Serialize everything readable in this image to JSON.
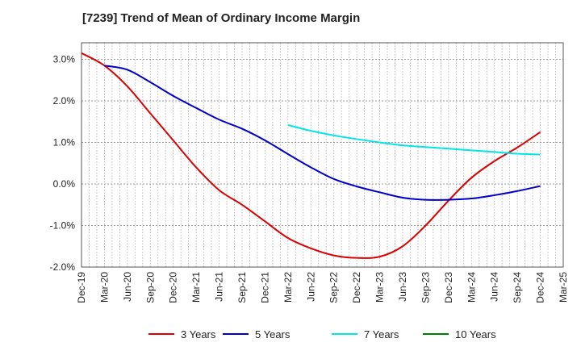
{
  "chart_data": {
    "type": "line",
    "title": "[7239]  Trend of Mean of Ordinary Income Margin",
    "xlabel": "",
    "ylabel": "",
    "x": [
      "Dec-19",
      "Mar-20",
      "Jun-20",
      "Sep-20",
      "Dec-20",
      "Mar-21",
      "Jun-21",
      "Sep-21",
      "Dec-21",
      "Mar-22",
      "Jun-22",
      "Sep-22",
      "Dec-22",
      "Mar-23",
      "Jun-23",
      "Sep-23",
      "Dec-23",
      "Mar-24",
      "Jun-24",
      "Sep-24",
      "Dec-24",
      "Mar-25"
    ],
    "ylim": [
      -2.0,
      3.4
    ],
    "yticks": [
      3.0,
      2.0,
      1.0,
      0.0,
      -1.0,
      -2.0
    ],
    "ytick_labels": [
      "3.0%",
      "2.0%",
      "1.0%",
      "0.0%",
      "-1.0%",
      "-2.0%"
    ],
    "grid": true,
    "legend_position": "bottom",
    "series": [
      {
        "name": "3 Years",
        "color": "#dd0000",
        "values": [
          3.15,
          2.85,
          2.35,
          1.7,
          1.05,
          0.4,
          -0.15,
          -0.5,
          -0.9,
          -1.3,
          -1.55,
          -1.72,
          -1.78,
          -1.75,
          -1.5,
          -1.0,
          -0.4,
          0.15,
          0.55,
          0.88,
          1.25,
          null
        ]
      },
      {
        "name": "5 Years",
        "color": "#0000cc",
        "values": [
          null,
          2.85,
          2.75,
          2.45,
          2.12,
          1.83,
          1.55,
          1.33,
          1.05,
          0.72,
          0.4,
          0.12,
          -0.06,
          -0.2,
          -0.33,
          -0.38,
          -0.38,
          -0.35,
          -0.27,
          -0.17,
          -0.05,
          null
        ]
      },
      {
        "name": "7 Years",
        "color": "#00e5e5",
        "values": [
          null,
          null,
          null,
          null,
          null,
          null,
          null,
          null,
          null,
          1.42,
          1.28,
          1.17,
          1.08,
          1.0,
          0.93,
          0.89,
          0.85,
          0.81,
          0.77,
          0.73,
          0.71,
          null
        ]
      },
      {
        "name": "10 Years",
        "color": "#008000",
        "values": [
          null,
          null,
          null,
          null,
          null,
          null,
          null,
          null,
          null,
          null,
          null,
          null,
          null,
          null,
          null,
          null,
          null,
          null,
          null,
          null,
          null,
          null
        ]
      }
    ]
  }
}
